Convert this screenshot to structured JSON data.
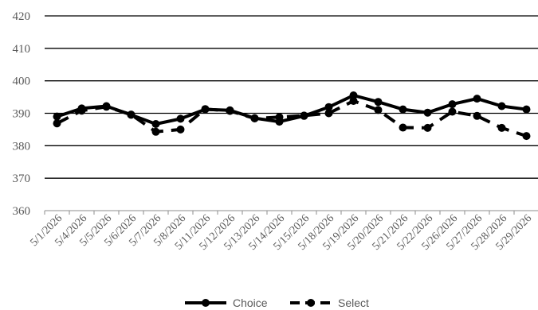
{
  "chart_data": {
    "type": "line",
    "title": "",
    "xlabel": "",
    "ylabel": "",
    "ylim": [
      360,
      420
    ],
    "yticks": [
      360,
      370,
      380,
      390,
      400,
      410,
      420
    ],
    "grid": true,
    "legend_position": "bottom-center",
    "categories": [
      "5/1/2026",
      "5/4/2026",
      "5/5/2026",
      "5/6/2026",
      "5/7/2026",
      "5/8/2026",
      "5/11/2026",
      "5/12/2026",
      "5/13/2026",
      "5/14/2026",
      "5/15/2026",
      "5/18/2026",
      "5/19/2026",
      "5/20/2026",
      "5/21/2026",
      "5/22/2026",
      "5/26/2026",
      "5/27/2026",
      "5/28/2026",
      "5/29/2026"
    ],
    "series": [
      {
        "name": "Choice",
        "style": "solid",
        "color": "#000000",
        "values": [
          389.0,
          391.5,
          392.2,
          389.5,
          386.7,
          388.3,
          391.2,
          390.9,
          388.5,
          387.4,
          389.2,
          391.9,
          395.5,
          393.5,
          391.2,
          390.2,
          392.8,
          394.5,
          392.2,
          391.2
        ]
      },
      {
        "name": "Select",
        "style": "dashed",
        "color": "#000000",
        "values": [
          386.9,
          390.8,
          392.0,
          389.6,
          384.3,
          385.0,
          391.3,
          390.7,
          388.4,
          388.8,
          389.3,
          390.0,
          393.8,
          391.0,
          385.6,
          385.5,
          390.5,
          389.2,
          385.5,
          383.0
        ]
      }
    ]
  }
}
